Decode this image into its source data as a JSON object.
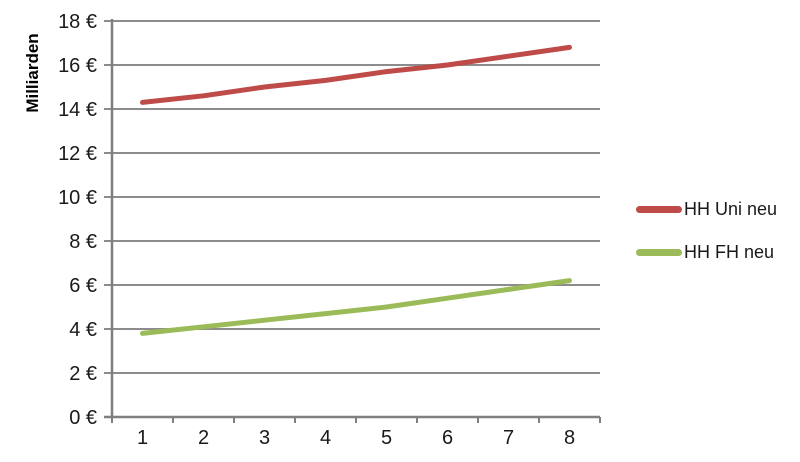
{
  "chart_data": {
    "type": "line",
    "title": "",
    "xlabel": "",
    "ylabel": "Milliarden",
    "categories": [
      "1",
      "2",
      "3",
      "4",
      "5",
      "6",
      "7",
      "8"
    ],
    "series": [
      {
        "name": "HH Uni neu",
        "color": "#BE4B48",
        "values": [
          14.3,
          14.6,
          15.0,
          15.3,
          15.7,
          16.0,
          16.4,
          16.8
        ]
      },
      {
        "name": "HH FH neu",
        "color": "#9BBB59",
        "values": [
          3.8,
          4.1,
          4.4,
          4.7,
          5.0,
          5.4,
          5.8,
          6.2
        ]
      }
    ],
    "ylim": [
      0,
      18
    ],
    "ytick_step": 2,
    "ytick_suffix": " €",
    "ytick_labels": [
      "0 €",
      "2 €",
      "4 €",
      "6 €",
      "8 €",
      "10 €",
      "12 €",
      "14 €",
      "16 €",
      "18 €"
    ],
    "grid": true,
    "legend_position": "right",
    "colors": {
      "gridline": "#8C8C8C",
      "axis": "#7F7F7F",
      "tick_text": "#1A1A1A",
      "background": "#FFFFFF"
    }
  }
}
